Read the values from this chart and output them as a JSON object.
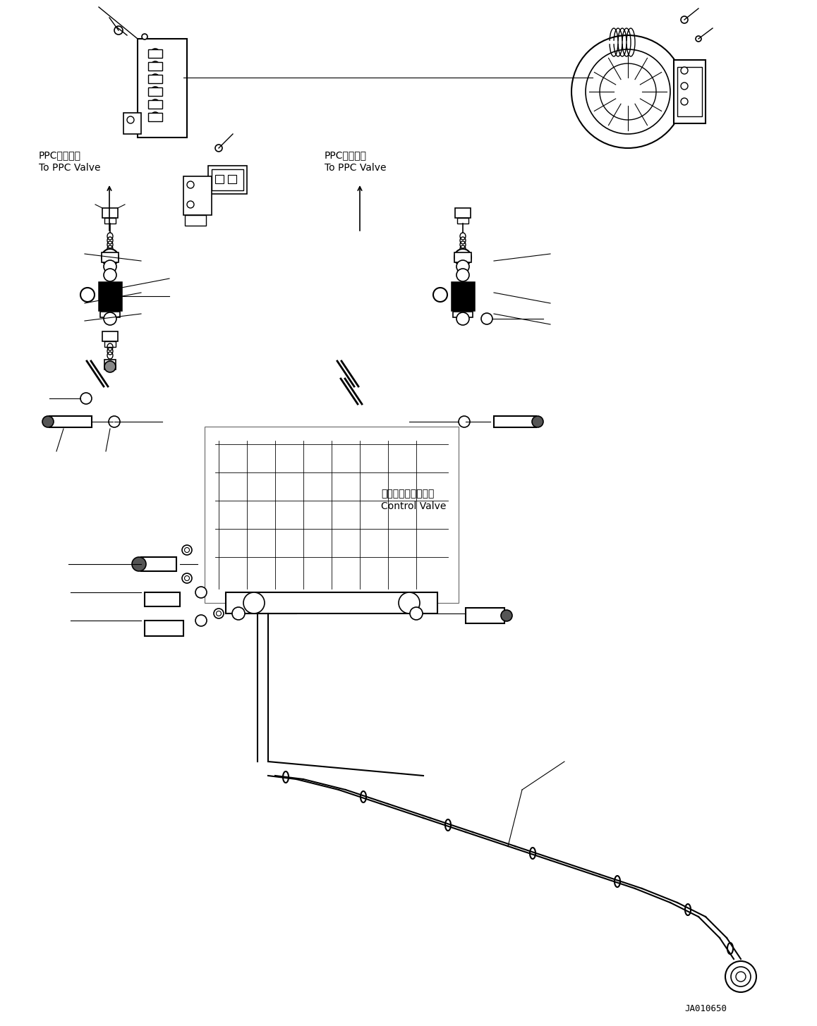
{
  "title": "",
  "background_color": "#ffffff",
  "line_color": "#000000",
  "fig_width": 11.58,
  "fig_height": 14.55,
  "dpi": 100,
  "watermark": "JA010650",
  "label_ppc_left_jp": "PPCバルブへ",
  "label_ppc_left_en": "To PPC Valve",
  "label_ppc_right_jp": "PPCバルブへ",
  "label_ppc_right_en": "To PPC Valve",
  "label_control_valve_jp": "コントロールバルブ",
  "label_control_valve_en": "Control Valve"
}
